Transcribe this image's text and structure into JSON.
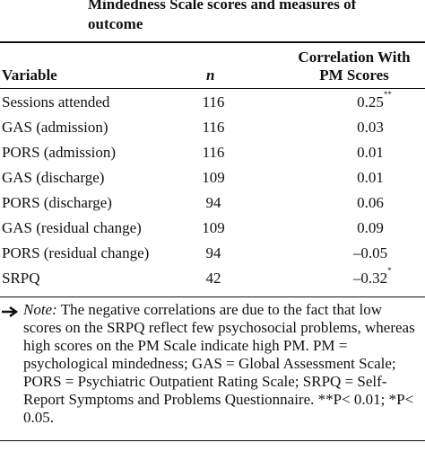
{
  "header": {
    "title": "Mindedness Scale scores and measures of outcome"
  },
  "table": {
    "columns": {
      "variable": "Variable",
      "n": "n",
      "correlation": "Correlation With PM Scores"
    },
    "rows": [
      {
        "variable": "Sessions attended",
        "n": 116,
        "correlation": "0.25",
        "mark": "**"
      },
      {
        "variable": "GAS (admission)",
        "n": 116,
        "correlation": "0.03"
      },
      {
        "variable": "PORS (admission)",
        "n": 116,
        "correlation": "0.01"
      },
      {
        "variable": "GAS (discharge)",
        "n": 109,
        "correlation": "0.01"
      },
      {
        "variable": "PORS (discharge)",
        "n": 94,
        "correlation": "0.06"
      },
      {
        "variable": "GAS (residual change)",
        "n": 109,
        "correlation": "0.09"
      },
      {
        "variable": "PORS (residual change)",
        "n": 94,
        "correlation": "–0.05"
      },
      {
        "variable": "SRPQ",
        "n": 42,
        "correlation": "–0.32",
        "mark": "*"
      }
    ]
  },
  "note": {
    "label": "Note:",
    "text": "The negative correlations are due to the fact that low scores on the SRPQ reflect few psychosocial problems, whereas high scores on the PM Scale indicate high PM. PM = psychological mindedness; GAS = Global Assessment Scale; PORS = Psychiatric Outpatient Rating Scale; SRPQ = Self-Report Symptoms and Problems Questionnaire.",
    "footnote": "**P< 0.01; *P< 0.05."
  }
}
